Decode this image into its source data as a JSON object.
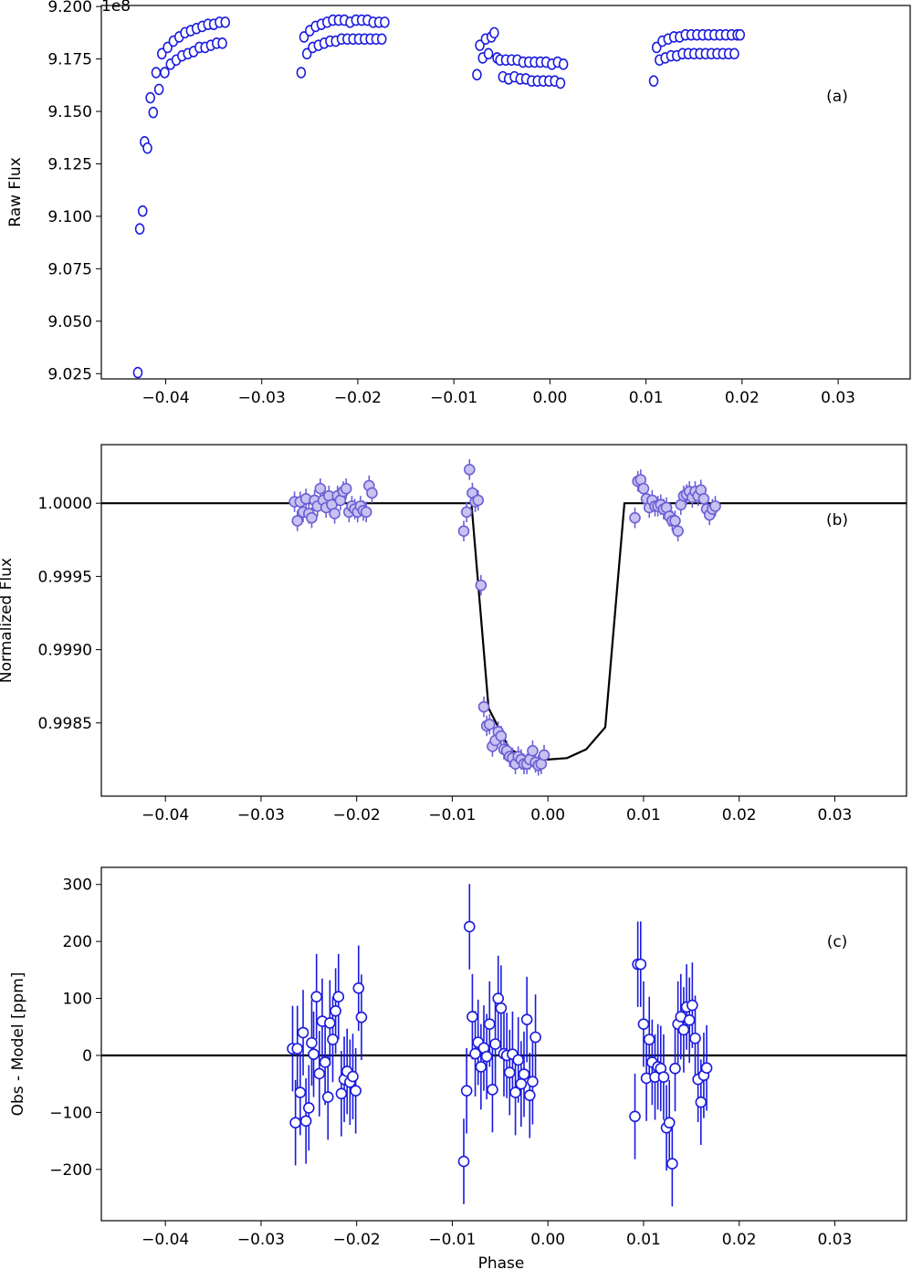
{
  "chart_data": [
    {
      "panel": "a",
      "type": "scatter",
      "panel_label": "(a)",
      "ylabel": "Raw Flux",
      "xlabel": "",
      "y_offset_text": "1e8",
      "xlim": [
        -0.0467,
        0.0375
      ],
      "ylim": [
        9.0225,
        9.2005
      ],
      "xticks": [
        -0.04,
        -0.03,
        -0.02,
        -0.01,
        0.0,
        0.01,
        0.02,
        0.03
      ],
      "xtick_labels": [
        "−0.04",
        "−0.03",
        "−0.02",
        "−0.01",
        "0.00",
        "0.01",
        "0.02",
        "0.03"
      ],
      "yticks": [
        9.025,
        9.05,
        9.075,
        9.1,
        9.125,
        9.15,
        9.175,
        9.2
      ],
      "ytick_labels": [
        "9.025",
        "9.050",
        "9.075",
        "9.100",
        "9.125",
        "9.150",
        "9.175",
        "9.200"
      ],
      "marker": "open-circle",
      "color": "#1a1adf",
      "points": [
        [
          -0.0429,
          9.0255
        ],
        [
          -0.0427,
          9.094
        ],
        [
          -0.0424,
          9.1025
        ],
        [
          -0.0422,
          9.1355
        ],
        [
          -0.0419,
          9.1325
        ],
        [
          -0.0416,
          9.1565
        ],
        [
          -0.0413,
          9.1495
        ],
        [
          -0.041,
          9.1685
        ],
        [
          -0.0407,
          9.1605
        ],
        [
          -0.0404,
          9.1775
        ],
        [
          -0.0401,
          9.1685
        ],
        [
          -0.0398,
          9.1805
        ],
        [
          -0.0395,
          9.1725
        ],
        [
          -0.0392,
          9.1835
        ],
        [
          -0.0389,
          9.1745
        ],
        [
          -0.0386,
          9.1855
        ],
        [
          -0.0383,
          9.1765
        ],
        [
          -0.038,
          9.1875
        ],
        [
          -0.0377,
          9.1775
        ],
        [
          -0.0374,
          9.1885
        ],
        [
          -0.0371,
          9.1785
        ],
        [
          -0.0368,
          9.1895
        ],
        [
          -0.0365,
          9.1805
        ],
        [
          -0.0362,
          9.1905
        ],
        [
          -0.0359,
          9.1805
        ],
        [
          -0.0356,
          9.1915
        ],
        [
          -0.0353,
          9.1815
        ],
        [
          -0.035,
          9.1915
        ],
        [
          -0.0347,
          9.1825
        ],
        [
          -0.0344,
          9.1925
        ],
        [
          -0.0341,
          9.1825
        ],
        [
          -0.0338,
          9.1925
        ],
        [
          -0.0259,
          9.1685
        ],
        [
          -0.0256,
          9.1855
        ],
        [
          -0.0253,
          9.1775
        ],
        [
          -0.025,
          9.1885
        ],
        [
          -0.0247,
          9.1805
        ],
        [
          -0.0244,
          9.1905
        ],
        [
          -0.0241,
          9.1815
        ],
        [
          -0.0238,
          9.1915
        ],
        [
          -0.0235,
          9.1825
        ],
        [
          -0.0232,
          9.1925
        ],
        [
          -0.0229,
          9.1835
        ],
        [
          -0.0226,
          9.1935
        ],
        [
          -0.0223,
          9.1835
        ],
        [
          -0.022,
          9.1935
        ],
        [
          -0.0217,
          9.1845
        ],
        [
          -0.0214,
          9.1935
        ],
        [
          -0.0211,
          9.1845
        ],
        [
          -0.0208,
          9.1925
        ],
        [
          -0.0205,
          9.1845
        ],
        [
          -0.0202,
          9.1935
        ],
        [
          -0.0199,
          9.1845
        ],
        [
          -0.0196,
          9.1935
        ],
        [
          -0.0193,
          9.1845
        ],
        [
          -0.019,
          9.1935
        ],
        [
          -0.0187,
          9.1845
        ],
        [
          -0.0184,
          9.1925
        ],
        [
          -0.0181,
          9.1845
        ],
        [
          -0.0178,
          9.1925
        ],
        [
          -0.0175,
          9.1845
        ],
        [
          -0.0172,
          9.1925
        ],
        [
          -0.0076,
          9.1675
        ],
        [
          -0.0073,
          9.1815
        ],
        [
          -0.007,
          9.1755
        ],
        [
          -0.0067,
          9.1845
        ],
        [
          -0.0064,
          9.1775
        ],
        [
          -0.0061,
          9.1855
        ],
        [
          -0.0058,
          9.1875
        ],
        [
          -0.0055,
          9.1755
        ],
        [
          -0.0052,
          9.1745
        ],
        [
          -0.0049,
          9.1665
        ],
        [
          -0.0046,
          9.1745
        ],
        [
          -0.0043,
          9.1655
        ],
        [
          -0.004,
          9.1745
        ],
        [
          -0.0037,
          9.1665
        ],
        [
          -0.0034,
          9.1745
        ],
        [
          -0.0031,
          9.1655
        ],
        [
          -0.0028,
          9.1735
        ],
        [
          -0.0025,
          9.1655
        ],
        [
          -0.0022,
          9.1735
        ],
        [
          -0.0019,
          9.1645
        ],
        [
          -0.0016,
          9.1735
        ],
        [
          -0.0013,
          9.1645
        ],
        [
          -0.001,
          9.1735
        ],
        [
          -0.0007,
          9.1645
        ],
        [
          -0.0004,
          9.1735
        ],
        [
          -0.0001,
          9.1645
        ],
        [
          0.0002,
          9.1725
        ],
        [
          0.0005,
          9.1645
        ],
        [
          0.0008,
          9.1735
        ],
        [
          0.0011,
          9.1635
        ],
        [
          0.0014,
          9.1725
        ],
        [
          0.0108,
          9.1645
        ],
        [
          0.0111,
          9.1805
        ],
        [
          0.0114,
          9.1745
        ],
        [
          0.0117,
          9.1835
        ],
        [
          0.012,
          9.1755
        ],
        [
          0.0123,
          9.1845
        ],
        [
          0.0126,
          9.1765
        ],
        [
          0.0129,
          9.1855
        ],
        [
          0.0132,
          9.1765
        ],
        [
          0.0135,
          9.1855
        ],
        [
          0.0138,
          9.1775
        ],
        [
          0.0141,
          9.1865
        ],
        [
          0.0144,
          9.1775
        ],
        [
          0.0147,
          9.1865
        ],
        [
          0.015,
          9.1775
        ],
        [
          0.0153,
          9.1865
        ],
        [
          0.0156,
          9.1775
        ],
        [
          0.0159,
          9.1865
        ],
        [
          0.0162,
          9.1775
        ],
        [
          0.0165,
          9.1865
        ],
        [
          0.0168,
          9.1775
        ],
        [
          0.0171,
          9.1865
        ],
        [
          0.0174,
          9.1775
        ],
        [
          0.0177,
          9.1865
        ],
        [
          0.018,
          9.1775
        ],
        [
          0.0183,
          9.1865
        ],
        [
          0.0186,
          9.1775
        ],
        [
          0.0189,
          9.1865
        ],
        [
          0.0192,
          9.1775
        ],
        [
          0.0195,
          9.1865
        ],
        [
          0.0198,
          9.1865
        ]
      ]
    },
    {
      "panel": "b",
      "type": "scatter",
      "panel_label": "(b)",
      "ylabel": "Normalized Flux",
      "xlabel": "",
      "xlim": [
        -0.0467,
        0.0375
      ],
      "ylim": [
        0.998,
        1.0004
      ],
      "xticks": [
        -0.04,
        -0.03,
        -0.02,
        -0.01,
        0.0,
        0.01,
        0.02,
        0.03
      ],
      "xtick_labels": [
        "−0.04",
        "−0.03",
        "−0.02",
        "−0.01",
        "0.00",
        "0.01",
        "0.02",
        "0.03"
      ],
      "yticks": [
        0.9985,
        0.999,
        0.9995,
        1.0
      ],
      "ytick_labels": [
        "0.9985",
        "0.9990",
        "0.9995",
        "1.0000"
      ],
      "marker": "filled-circle-with-errorbar",
      "color": "#6b5fd6",
      "error": 7e-05,
      "points": [
        [
          -0.0265,
          1.00001
        ],
        [
          -0.0262,
          0.99988
        ],
        [
          -0.0259,
          1.00001
        ],
        [
          -0.0256,
          0.99994
        ],
        [
          -0.0253,
          1.00003
        ],
        [
          -0.025,
          0.99993
        ],
        [
          -0.0247,
          0.9999
        ],
        [
          -0.0244,
          1.00002
        ],
        [
          -0.0241,
          0.99998
        ],
        [
          -0.0238,
          1.0001
        ],
        [
          -0.0235,
          1.00002
        ],
        [
          -0.0232,
          0.99997
        ],
        [
          -0.0229,
          1.00005
        ],
        [
          -0.0226,
          0.99999
        ],
        [
          -0.0223,
          0.99993
        ],
        [
          -0.022,
          1.00005
        ],
        [
          -0.0217,
          1.00002
        ],
        [
          -0.0214,
          1.00008
        ],
        [
          -0.0211,
          1.0001
        ],
        [
          -0.0208,
          0.99994
        ],
        [
          -0.0205,
          0.99998
        ],
        [
          -0.0202,
          0.99996
        ],
        [
          -0.0199,
          0.99994
        ],
        [
          -0.0196,
          0.99998
        ],
        [
          -0.0193,
          0.99995
        ],
        [
          -0.019,
          0.99994
        ],
        [
          -0.0187,
          1.00012
        ],
        [
          -0.0184,
          1.00007
        ],
        [
          -0.0088,
          0.99981
        ],
        [
          -0.0085,
          0.99994
        ],
        [
          -0.0082,
          1.00023
        ],
        [
          -0.0079,
          1.00007
        ],
        [
          -0.0076,
          1.00001
        ],
        [
          -0.0073,
          1.00002
        ],
        [
          -0.007,
          0.99944
        ],
        [
          -0.0067,
          0.99861
        ],
        [
          -0.0064,
          0.99848
        ],
        [
          -0.0061,
          0.99849
        ],
        [
          -0.0058,
          0.99834
        ],
        [
          -0.0055,
          0.99838
        ],
        [
          -0.0052,
          0.99844
        ],
        [
          -0.0049,
          0.99841
        ],
        [
          -0.0046,
          0.99832
        ],
        [
          -0.0043,
          0.99831
        ],
        [
          -0.004,
          0.99827
        ],
        [
          -0.0037,
          0.99826
        ],
        [
          -0.0034,
          0.99822
        ],
        [
          -0.0031,
          0.99827
        ],
        [
          -0.0028,
          0.99825
        ],
        [
          -0.0025,
          0.99822
        ],
        [
          -0.0022,
          0.99822
        ],
        [
          -0.0019,
          0.99825
        ],
        [
          -0.0016,
          0.99831
        ],
        [
          -0.0013,
          0.99823
        ],
        [
          -0.001,
          0.99821
        ],
        [
          -0.0007,
          0.99822
        ],
        [
          -0.0004,
          0.99828
        ],
        [
          0.0091,
          0.9999
        ],
        [
          0.0094,
          1.00015
        ],
        [
          0.0097,
          1.00016
        ],
        [
          0.01,
          1.0001
        ],
        [
          0.0103,
          1.00003
        ],
        [
          0.0106,
          0.99997
        ],
        [
          0.0109,
          1.00002
        ],
        [
          0.0112,
          0.99998
        ],
        [
          0.0115,
          0.99998
        ],
        [
          0.0118,
          0.99999
        ],
        [
          0.0121,
          0.99996
        ],
        [
          0.0124,
          0.99997
        ],
        [
          0.0127,
          0.99991
        ],
        [
          0.013,
          0.99988
        ],
        [
          0.0133,
          0.99988
        ],
        [
          0.0136,
          0.99981
        ],
        [
          0.0139,
          0.99999
        ],
        [
          0.0142,
          1.00005
        ],
        [
          0.0145,
          1.00006
        ],
        [
          0.0148,
          1.00008
        ],
        [
          0.0151,
          1.00004
        ],
        [
          0.0154,
          1.00008
        ],
        [
          0.0157,
          1.00005
        ],
        [
          0.016,
          1.00009
        ],
        [
          0.0163,
          1.00003
        ],
        [
          0.0166,
          0.99996
        ],
        [
          0.0169,
          0.99992
        ],
        [
          0.0172,
          0.99996
        ],
        [
          0.0175,
          0.99998
        ]
      ],
      "model": {
        "name": "transit model",
        "color": "#000000",
        "x": [
          -0.0467,
          -0.008,
          -0.0062,
          -0.004,
          -0.002,
          0.0,
          0.002,
          0.004,
          0.006,
          0.008,
          0.0375
        ],
        "y": [
          1.0,
          1.0,
          0.9986,
          0.99832,
          0.99826,
          0.99825,
          0.99826,
          0.99832,
          0.99847,
          1.0,
          1.0
        ]
      }
    },
    {
      "panel": "c",
      "type": "scatter",
      "panel_label": "(c)",
      "ylabel": "Obs - Model [ppm]",
      "xlabel": "Phase",
      "xlim": [
        -0.0467,
        0.0375
      ],
      "ylim": [
        -290,
        330
      ],
      "xticks": [
        -0.04,
        -0.03,
        -0.02,
        -0.01,
        0.0,
        0.01,
        0.02,
        0.03
      ],
      "xtick_labels": [
        "−0.04",
        "−0.03",
        "−0.02",
        "−0.01",
        "0.00",
        "0.01",
        "0.02",
        "0.03"
      ],
      "yticks": [
        -200,
        -100,
        0,
        100,
        200,
        300
      ],
      "ytick_labels": [
        "−200",
        "−100",
        "0",
        "100",
        "200",
        "300"
      ],
      "marker": "open-circle-with-errorbar",
      "color": "#1a1adf",
      "error": 75,
      "zero_line": 0,
      "points": [
        [
          -0.0267,
          12
        ],
        [
          -0.0264,
          -118
        ],
        [
          -0.0262,
          12
        ],
        [
          -0.0259,
          -65
        ],
        [
          -0.0256,
          40
        ],
        [
          -0.0253,
          -115
        ],
        [
          -0.025,
          -92
        ],
        [
          -0.0247,
          22
        ],
        [
          -0.0245,
          2
        ],
        [
          -0.0242,
          103
        ],
        [
          -0.0239,
          -32
        ],
        [
          -0.0236,
          60
        ],
        [
          -0.0233,
          -12
        ],
        [
          -0.023,
          -73
        ],
        [
          -0.0228,
          57
        ],
        [
          -0.0225,
          28
        ],
        [
          -0.0222,
          78
        ],
        [
          -0.0219,
          103
        ],
        [
          -0.0216,
          -67
        ],
        [
          -0.0213,
          -42
        ],
        [
          -0.021,
          -28
        ],
        [
          -0.0207,
          -47
        ],
        [
          -0.0204,
          -37
        ],
        [
          -0.0201,
          -62
        ],
        [
          -0.0198,
          118
        ],
        [
          -0.0195,
          67
        ],
        [
          -0.0088,
          -186
        ],
        [
          -0.0085,
          -62
        ],
        [
          -0.0082,
          226
        ],
        [
          -0.0079,
          68
        ],
        [
          -0.0076,
          3
        ],
        [
          -0.0073,
          23
        ],
        [
          -0.007,
          -20
        ],
        [
          -0.0067,
          13
        ],
        [
          -0.0064,
          -2
        ],
        [
          -0.0061,
          55
        ],
        [
          -0.0058,
          -60
        ],
        [
          -0.0055,
          20
        ],
        [
          -0.0052,
          100
        ],
        [
          -0.0049,
          83
        ],
        [
          -0.0046,
          3
        ],
        [
          -0.0043,
          0
        ],
        [
          -0.004,
          -30
        ],
        [
          -0.0037,
          2
        ],
        [
          -0.0034,
          -65
        ],
        [
          -0.0031,
          -8
        ],
        [
          -0.0028,
          -50
        ],
        [
          -0.0025,
          -33
        ],
        [
          -0.0022,
          63
        ],
        [
          -0.0019,
          -70
        ],
        [
          -0.0016,
          -46
        ],
        [
          -0.0013,
          32
        ],
        [
          0.0091,
          -107
        ],
        [
          0.0094,
          160
        ],
        [
          0.0097,
          160
        ],
        [
          0.01,
          55
        ],
        [
          0.0103,
          -40
        ],
        [
          0.0106,
          28
        ],
        [
          0.0109,
          -12
        ],
        [
          0.0112,
          -38
        ],
        [
          0.0115,
          -20
        ],
        [
          0.0118,
          -23
        ],
        [
          0.0121,
          -38
        ],
        [
          0.0124,
          -127
        ],
        [
          0.0127,
          -118
        ],
        [
          0.013,
          -190
        ],
        [
          0.0133,
          -23
        ],
        [
          0.0136,
          55
        ],
        [
          0.0139,
          68
        ],
        [
          0.0142,
          45
        ],
        [
          0.0145,
          85
        ],
        [
          0.0148,
          62
        ],
        [
          0.0151,
          88
        ],
        [
          0.0154,
          30
        ],
        [
          0.0157,
          -42
        ],
        [
          0.016,
          -82
        ],
        [
          0.0163,
          -35
        ],
        [
          0.0166,
          -22
        ]
      ]
    }
  ]
}
